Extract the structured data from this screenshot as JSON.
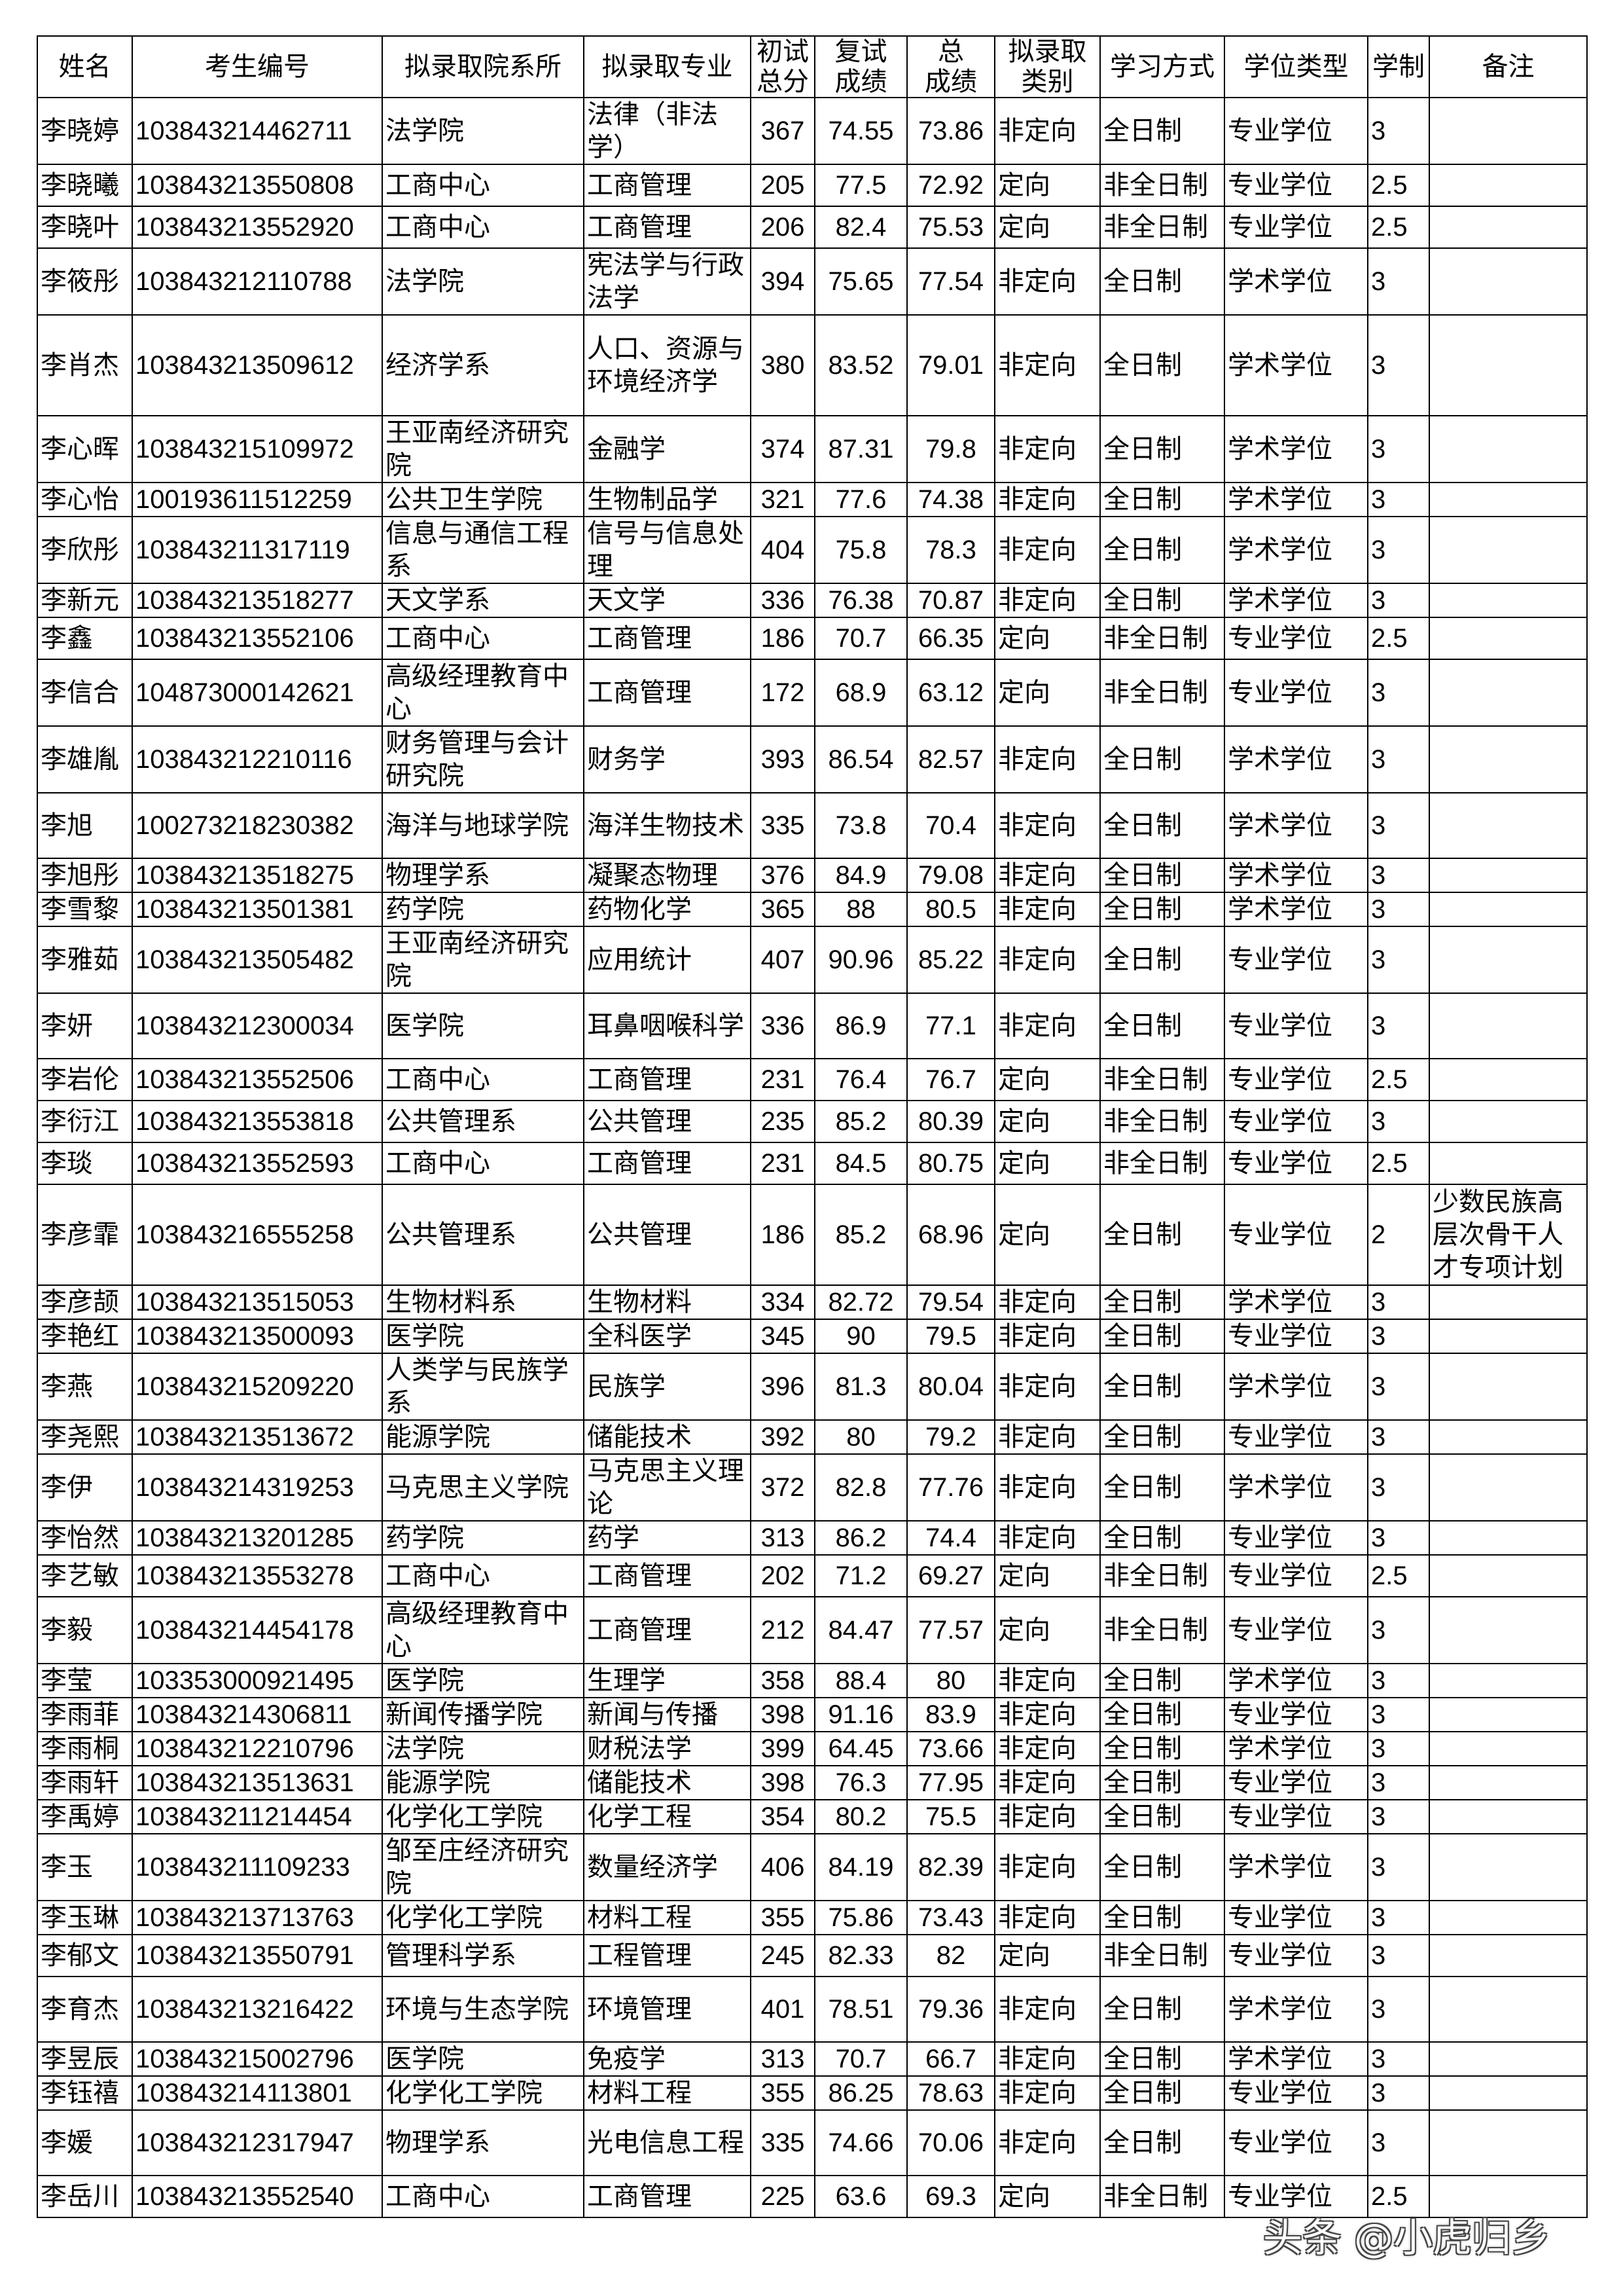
{
  "headers": [
    "姓名",
    "考生编号",
    "拟录取院系所",
    "拟录取专业",
    "初试\n总分",
    "复试\n成绩",
    "总\n成绩",
    "拟录取\n类别",
    "学习方式",
    "学位类型",
    "学制",
    "备注"
  ],
  "rows": [
    [
      "李晓婷",
      "103843214462711",
      "法学院",
      "法律（非法学）",
      "367",
      "74.55",
      "73.86",
      "非定向",
      "全日制",
      "专业学位",
      "3",
      ""
    ],
    [
      "李晓曦",
      "103843213550808",
      "工商中心",
      "工商管理",
      "205",
      "77.5",
      "72.92",
      "定向",
      "非全日制",
      "专业学位",
      "2.5",
      ""
    ],
    [
      "李晓叶",
      "103843213552920",
      "工商中心",
      "工商管理",
      "206",
      "82.4",
      "75.53",
      "定向",
      "非全日制",
      "专业学位",
      "2.5",
      ""
    ],
    [
      "李筱彤",
      "103843212110788",
      "法学院",
      "宪法学与行政法学",
      "394",
      "75.65",
      "77.54",
      "非定向",
      "全日制",
      "学术学位",
      "3",
      ""
    ],
    [
      "李肖杰",
      "103843213509612",
      "经济学系",
      "人口、资源与环境经济学",
      "380",
      "83.52",
      "79.01",
      "非定向",
      "全日制",
      "学术学位",
      "3",
      ""
    ],
    [
      "李心晖",
      "103843215109972",
      "王亚南经济研究院",
      "金融学",
      "374",
      "87.31",
      "79.8",
      "非定向",
      "全日制",
      "学术学位",
      "3",
      ""
    ],
    [
      "李心怡",
      "100193611512259",
      "公共卫生学院",
      "生物制品学",
      "321",
      "77.6",
      "74.38",
      "非定向",
      "全日制",
      "学术学位",
      "3",
      ""
    ],
    [
      "李欣彤",
      "103843211317119",
      "信息与通信工程系",
      "信号与信息处理",
      "404",
      "75.8",
      "78.3",
      "非定向",
      "全日制",
      "学术学位",
      "3",
      ""
    ],
    [
      "李新元",
      "103843213518277",
      "天文学系",
      "天文学",
      "336",
      "76.38",
      "70.87",
      "非定向",
      "全日制",
      "学术学位",
      "3",
      ""
    ],
    [
      "李鑫",
      "103843213552106",
      "工商中心",
      "工商管理",
      "186",
      "70.7",
      "66.35",
      "定向",
      "非全日制",
      "专业学位",
      "2.5",
      ""
    ],
    [
      "李信合",
      "104873000142621",
      "高级经理教育中心",
      "工商管理",
      "172",
      "68.9",
      "63.12",
      "定向",
      "非全日制",
      "专业学位",
      "3",
      ""
    ],
    [
      "李雄胤",
      "103843212210116",
      "财务管理与会计研究院",
      "财务学",
      "393",
      "86.54",
      "82.57",
      "非定向",
      "全日制",
      "学术学位",
      "3",
      ""
    ],
    [
      "李旭",
      "100273218230382",
      "海洋与地球学院",
      "海洋生物技术",
      "335",
      "73.8",
      "70.4",
      "非定向",
      "全日制",
      "学术学位",
      "3",
      ""
    ],
    [
      "李旭彤",
      "103843213518275",
      "物理学系",
      "凝聚态物理",
      "376",
      "84.9",
      "79.08",
      "非定向",
      "全日制",
      "学术学位",
      "3",
      ""
    ],
    [
      "李雪黎",
      "103843213501381",
      "药学院",
      "药物化学",
      "365",
      "88",
      "80.5",
      "非定向",
      "全日制",
      "学术学位",
      "3",
      ""
    ],
    [
      "李雅茹",
      "103843213505482",
      "王亚南经济研究院",
      "应用统计",
      "407",
      "90.96",
      "85.22",
      "非定向",
      "全日制",
      "专业学位",
      "3",
      ""
    ],
    [
      "李妍",
      "103843212300034",
      "医学院",
      "耳鼻咽喉科学",
      "336",
      "86.9",
      "77.1",
      "非定向",
      "全日制",
      "专业学位",
      "3",
      ""
    ],
    [
      "李岩伦",
      "103843213552506",
      "工商中心",
      "工商管理",
      "231",
      "76.4",
      "76.7",
      "定向",
      "非全日制",
      "专业学位",
      "2.5",
      ""
    ],
    [
      "李衍江",
      "103843213553818",
      "公共管理系",
      "公共管理",
      "235",
      "85.2",
      "80.39",
      "定向",
      "非全日制",
      "专业学位",
      "3",
      ""
    ],
    [
      "李琰",
      "103843213552593",
      "工商中心",
      "工商管理",
      "231",
      "84.5",
      "80.75",
      "定向",
      "非全日制",
      "专业学位",
      "2.5",
      ""
    ],
    [
      "李彦霏",
      "103843216555258",
      "公共管理系",
      "公共管理",
      "186",
      "85.2",
      "68.96",
      "定向",
      "全日制",
      "专业学位",
      "2",
      "少数民族高层次骨干人才专项计划"
    ],
    [
      "李彦颉",
      "103843213515053",
      "生物材料系",
      "生物材料",
      "334",
      "82.72",
      "79.54",
      "非定向",
      "全日制",
      "学术学位",
      "3",
      ""
    ],
    [
      "李艳红",
      "103843213500093",
      "医学院",
      "全科医学",
      "345",
      "90",
      "79.5",
      "非定向",
      "全日制",
      "专业学位",
      "3",
      ""
    ],
    [
      "李燕",
      "103843215209220",
      "人类学与民族学系",
      "民族学",
      "396",
      "81.3",
      "80.04",
      "非定向",
      "全日制",
      "学术学位",
      "3",
      ""
    ],
    [
      "李尧熙",
      "103843213513672",
      "能源学院",
      "储能技术",
      "392",
      "80",
      "79.2",
      "非定向",
      "全日制",
      "专业学位",
      "3",
      ""
    ],
    [
      "李伊",
      "103843214319253",
      "马克思主义学院",
      "马克思主义理论",
      "372",
      "82.8",
      "77.76",
      "非定向",
      "全日制",
      "学术学位",
      "3",
      ""
    ],
    [
      "李怡然",
      "103843213201285",
      "药学院",
      "药学",
      "313",
      "86.2",
      "74.4",
      "非定向",
      "全日制",
      "专业学位",
      "3",
      ""
    ],
    [
      "李艺敏",
      "103843213553278",
      "工商中心",
      "工商管理",
      "202",
      "71.2",
      "69.27",
      "定向",
      "非全日制",
      "专业学位",
      "2.5",
      ""
    ],
    [
      "李毅",
      "103843214454178",
      "高级经理教育中心",
      "工商管理",
      "212",
      "84.47",
      "77.57",
      "定向",
      "非全日制",
      "专业学位",
      "3",
      ""
    ],
    [
      "李莹",
      "103353000921495",
      "医学院",
      "生理学",
      "358",
      "88.4",
      "80",
      "非定向",
      "全日制",
      "学术学位",
      "3",
      ""
    ],
    [
      "李雨菲",
      "103843214306811",
      "新闻传播学院",
      "新闻与传播",
      "398",
      "91.16",
      "83.9",
      "非定向",
      "全日制",
      "专业学位",
      "3",
      ""
    ],
    [
      "李雨桐",
      "103843212210796",
      "法学院",
      "财税法学",
      "399",
      "64.45",
      "73.66",
      "非定向",
      "全日制",
      "学术学位",
      "3",
      ""
    ],
    [
      "李雨轩",
      "103843213513631",
      "能源学院",
      "储能技术",
      "398",
      "76.3",
      "77.95",
      "非定向",
      "全日制",
      "专业学位",
      "3",
      ""
    ],
    [
      "李禹婷",
      "103843211214454",
      "化学化工学院",
      "化学工程",
      "354",
      "80.2",
      "75.5",
      "非定向",
      "全日制",
      "专业学位",
      "3",
      ""
    ],
    [
      "李玉",
      "103843211109233",
      "邹至庄经济研究院",
      "数量经济学",
      "406",
      "84.19",
      "82.39",
      "非定向",
      "全日制",
      "学术学位",
      "3",
      ""
    ],
    [
      "李玉琳",
      "103843213713763",
      "化学化工学院",
      "材料工程",
      "355",
      "75.86",
      "73.43",
      "非定向",
      "全日制",
      "专业学位",
      "3",
      ""
    ],
    [
      "李郁文",
      "103843213550791",
      "管理科学系",
      "工程管理",
      "245",
      "82.33",
      "82",
      "定向",
      "非全日制",
      "专业学位",
      "3",
      ""
    ],
    [
      "李育杰",
      "103843213216422",
      "环境与生态学院",
      "环境管理",
      "401",
      "78.51",
      "79.36",
      "非定向",
      "全日制",
      "学术学位",
      "3",
      ""
    ],
    [
      "李昱辰",
      "103843215002796",
      "医学院",
      "免疫学",
      "313",
      "70.7",
      "66.7",
      "非定向",
      "全日制",
      "学术学位",
      "3",
      ""
    ],
    [
      "李钰禧",
      "103843214113801",
      "化学化工学院",
      "材料工程",
      "355",
      "86.25",
      "78.63",
      "非定向",
      "全日制",
      "专业学位",
      "3",
      ""
    ],
    [
      "李媛",
      "103843212317947",
      "物理学系",
      "光电信息工程",
      "335",
      "74.66",
      "70.06",
      "非定向",
      "全日制",
      "专业学位",
      "3",
      ""
    ],
    [
      "李岳川",
      "103843213552540",
      "工商中心",
      "工商管理",
      "225",
      "63.6",
      "69.3",
      "定向",
      "非全日制",
      "专业学位",
      "2.5",
      ""
    ]
  ],
  "watermark": "头条 @小虎归乡"
}
